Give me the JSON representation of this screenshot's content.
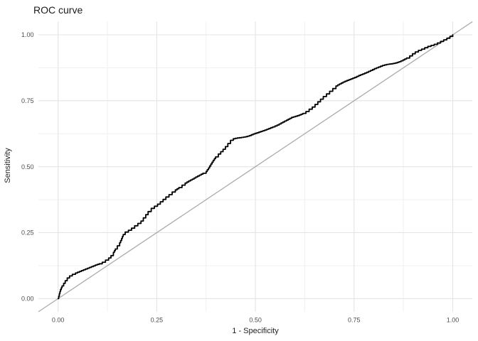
{
  "title": "ROC curve",
  "chart_data": {
    "type": "line",
    "title": "ROC curve",
    "xlabel": "1 - Specificity",
    "ylabel": "Sensitivity",
    "xlim": [
      0,
      1
    ],
    "ylim": [
      0,
      1
    ],
    "grid": "major+minor",
    "legend": "none",
    "x_ticks": [
      {
        "value": 0.0,
        "label": "0.00"
      },
      {
        "value": 0.25,
        "label": "0.25"
      },
      {
        "value": 0.5,
        "label": "0.50"
      },
      {
        "value": 0.75,
        "label": "0.75"
      },
      {
        "value": 1.0,
        "label": "1.00"
      }
    ],
    "y_ticks": [
      {
        "value": 0.0,
        "label": "0.00"
      },
      {
        "value": 0.25,
        "label": "0.25"
      },
      {
        "value": 0.5,
        "label": "0.50"
      },
      {
        "value": 0.75,
        "label": "0.75"
      },
      {
        "value": 1.0,
        "label": "1.00"
      }
    ],
    "colors": {
      "curve": "#000000",
      "diagonal": "#ababab",
      "grid_major": "#e4e4e4",
      "grid_minor": "#efefef",
      "tick_label": "#4d4d4d",
      "text": "#1a1a1a",
      "background": "#ffffff"
    },
    "series": [
      {
        "name": "roc",
        "draw": "step",
        "points": [
          [
            0.0,
            0.0
          ],
          [
            0.003,
            0.018
          ],
          [
            0.006,
            0.034
          ],
          [
            0.01,
            0.048
          ],
          [
            0.014,
            0.058
          ],
          [
            0.018,
            0.068
          ],
          [
            0.023,
            0.078
          ],
          [
            0.029,
            0.086
          ],
          [
            0.036,
            0.092
          ],
          [
            0.044,
            0.097
          ],
          [
            0.054,
            0.103
          ],
          [
            0.064,
            0.109
          ],
          [
            0.074,
            0.115
          ],
          [
            0.084,
            0.121
          ],
          [
            0.094,
            0.127
          ],
          [
            0.104,
            0.132
          ],
          [
            0.112,
            0.138
          ],
          [
            0.12,
            0.146
          ],
          [
            0.128,
            0.154
          ],
          [
            0.134,
            0.163
          ],
          [
            0.14,
            0.175
          ],
          [
            0.145,
            0.188
          ],
          [
            0.15,
            0.2
          ],
          [
            0.156,
            0.212
          ],
          [
            0.161,
            0.228
          ],
          [
            0.165,
            0.243
          ],
          [
            0.17,
            0.252
          ],
          [
            0.178,
            0.259
          ],
          [
            0.186,
            0.267
          ],
          [
            0.194,
            0.276
          ],
          [
            0.202,
            0.285
          ],
          [
            0.21,
            0.294
          ],
          [
            0.216,
            0.306
          ],
          [
            0.222,
            0.318
          ],
          [
            0.228,
            0.33
          ],
          [
            0.236,
            0.342
          ],
          [
            0.244,
            0.35
          ],
          [
            0.252,
            0.358
          ],
          [
            0.259,
            0.367
          ],
          [
            0.266,
            0.376
          ],
          [
            0.273,
            0.385
          ],
          [
            0.281,
            0.394
          ],
          [
            0.289,
            0.404
          ],
          [
            0.297,
            0.412
          ],
          [
            0.306,
            0.421
          ],
          [
            0.314,
            0.43
          ],
          [
            0.322,
            0.438
          ],
          [
            0.331,
            0.446
          ],
          [
            0.34,
            0.453
          ],
          [
            0.349,
            0.461
          ],
          [
            0.358,
            0.468
          ],
          [
            0.367,
            0.475
          ],
          [
            0.375,
            0.482
          ],
          [
            0.381,
            0.495
          ],
          [
            0.387,
            0.51
          ],
          [
            0.393,
            0.524
          ],
          [
            0.399,
            0.537
          ],
          [
            0.406,
            0.548
          ],
          [
            0.412,
            0.557
          ],
          [
            0.418,
            0.566
          ],
          [
            0.424,
            0.576
          ],
          [
            0.43,
            0.588
          ],
          [
            0.437,
            0.6
          ],
          [
            0.444,
            0.606
          ],
          [
            0.454,
            0.609
          ],
          [
            0.465,
            0.611
          ],
          [
            0.476,
            0.614
          ],
          [
            0.485,
            0.618
          ],
          [
            0.494,
            0.624
          ],
          [
            0.504,
            0.629
          ],
          [
            0.514,
            0.634
          ],
          [
            0.524,
            0.639
          ],
          [
            0.534,
            0.645
          ],
          [
            0.544,
            0.651
          ],
          [
            0.555,
            0.658
          ],
          [
            0.565,
            0.666
          ],
          [
            0.574,
            0.673
          ],
          [
            0.583,
            0.68
          ],
          [
            0.592,
            0.687
          ],
          [
            0.601,
            0.691
          ],
          [
            0.611,
            0.696
          ],
          [
            0.62,
            0.702
          ],
          [
            0.628,
            0.709
          ],
          [
            0.636,
            0.718
          ],
          [
            0.644,
            0.726
          ],
          [
            0.651,
            0.736
          ],
          [
            0.658,
            0.746
          ],
          [
            0.665,
            0.756
          ],
          [
            0.672,
            0.766
          ],
          [
            0.68,
            0.776
          ],
          [
            0.688,
            0.786
          ],
          [
            0.696,
            0.796
          ],
          [
            0.704,
            0.806
          ],
          [
            0.713,
            0.814
          ],
          [
            0.722,
            0.821
          ],
          [
            0.732,
            0.827
          ],
          [
            0.742,
            0.833
          ],
          [
            0.752,
            0.839
          ],
          [
            0.762,
            0.846
          ],
          [
            0.772,
            0.852
          ],
          [
            0.782,
            0.858
          ],
          [
            0.792,
            0.865
          ],
          [
            0.802,
            0.872
          ],
          [
            0.812,
            0.878
          ],
          [
            0.822,
            0.884
          ],
          [
            0.833,
            0.888
          ],
          [
            0.844,
            0.89
          ],
          [
            0.854,
            0.893
          ],
          [
            0.864,
            0.898
          ],
          [
            0.874,
            0.905
          ],
          [
            0.883,
            0.912
          ],
          [
            0.891,
            0.92
          ],
          [
            0.898,
            0.928
          ],
          [
            0.905,
            0.935
          ],
          [
            0.913,
            0.941
          ],
          [
            0.921,
            0.946
          ],
          [
            0.929,
            0.951
          ],
          [
            0.937,
            0.956
          ],
          [
            0.945,
            0.96
          ],
          [
            0.953,
            0.964
          ],
          [
            0.961,
            0.969
          ],
          [
            0.969,
            0.975
          ],
          [
            0.977,
            0.981
          ],
          [
            0.985,
            0.987
          ],
          [
            0.993,
            0.994
          ],
          [
            1.0,
            1.0
          ]
        ]
      },
      {
        "name": "diagonal-reference",
        "draw": "straight",
        "points": [
          [
            0,
            0
          ],
          [
            1,
            1
          ]
        ]
      }
    ]
  }
}
